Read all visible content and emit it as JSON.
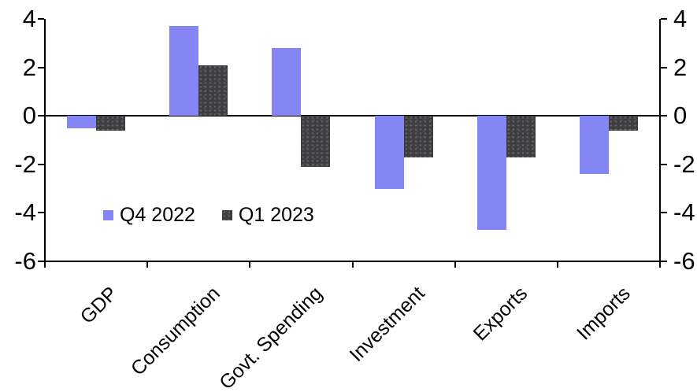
{
  "chart_data": {
    "type": "bar",
    "title": "",
    "xlabel": "",
    "ylabel": "",
    "categories": [
      "GDP",
      "Consumption",
      "Govt. Spending",
      "Investment",
      "Exports",
      "Imports"
    ],
    "series": [
      {
        "name": "Q4 2022",
        "color": "#8585f5",
        "pattern": "solid",
        "values": [
          -0.5,
          3.7,
          2.8,
          -3.0,
          -4.7,
          -2.4
        ]
      },
      {
        "name": "Q1 2023",
        "color": "#3e3e40",
        "pattern": "speckled",
        "values": [
          -0.6,
          2.1,
          -2.1,
          -1.7,
          -1.7,
          -0.6
        ]
      }
    ],
    "ylim": [
      -6,
      4
    ],
    "y_ticks": [
      4,
      2,
      0,
      -2,
      -4,
      -6
    ],
    "dual_y_axis": true,
    "grid": false,
    "zero_line": true,
    "legend_position": "inside-lower-left",
    "axis_color": "#000000",
    "background_color": "#ffffff"
  }
}
